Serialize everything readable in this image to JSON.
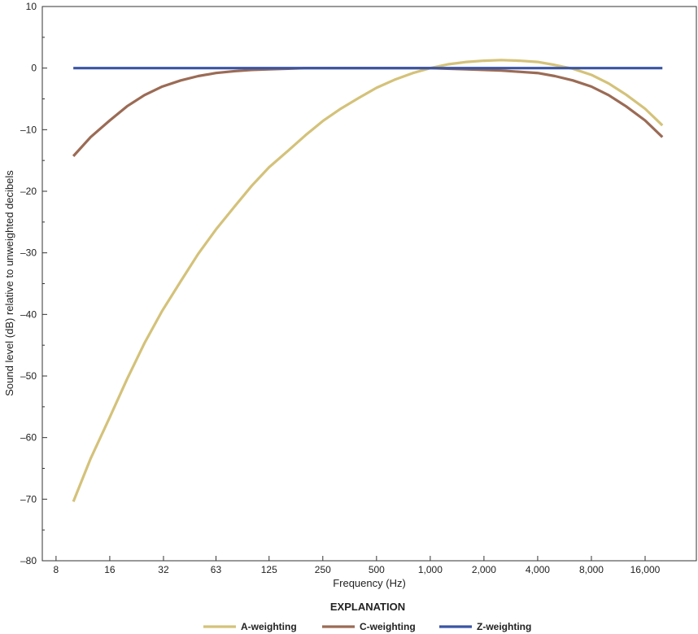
{
  "chart_data": {
    "type": "line",
    "xscale": "log2",
    "x_ticks": [
      8,
      16,
      32,
      63,
      125,
      250,
      500,
      1000,
      2000,
      4000,
      8000,
      16000
    ],
    "x_tick_labels": [
      "8",
      "16",
      "32",
      "63",
      "125",
      "250",
      "500",
      "1,000",
      "2,000",
      "4,000",
      "8,000",
      "16,000"
    ],
    "xlim": [
      6.7,
      31000
    ],
    "ylim": [
      -80,
      10
    ],
    "y_ticks": [
      10,
      0,
      -10,
      -20,
      -30,
      -40,
      -50,
      -60,
      -70,
      -80
    ],
    "y_tick_labels": [
      "10",
      "0",
      "–10",
      "–20",
      "–30",
      "–40",
      "–50",
      "–60",
      "–70",
      "–80"
    ],
    "xlabel": "Frequency (Hz)",
    "ylabel": "Sound level (dB) relative to unweighted decibels",
    "legend_title": "EXPLANATION",
    "legend_position": "bottom",
    "grid": false,
    "x": [
      10,
      12.5,
      16,
      20,
      25,
      31.5,
      40,
      50,
      63,
      80,
      100,
      125,
      160,
      200,
      250,
      315,
      400,
      500,
      630,
      800,
      1000,
      1250,
      1600,
      2000,
      2500,
      3150,
      4000,
      5000,
      6300,
      8000,
      10000,
      12500,
      16000,
      20000
    ],
    "series": [
      {
        "name": "A-weighting",
        "color": "#d4c27a",
        "values": [
          -70.4,
          -63.4,
          -56.7,
          -50.5,
          -44.7,
          -39.4,
          -34.6,
          -30.2,
          -26.2,
          -22.5,
          -19.1,
          -16.1,
          -13.4,
          -10.9,
          -8.6,
          -6.6,
          -4.8,
          -3.2,
          -1.9,
          -0.8,
          0.0,
          0.6,
          1.0,
          1.2,
          1.3,
          1.2,
          1.0,
          0.5,
          -0.1,
          -1.1,
          -2.5,
          -4.3,
          -6.6,
          -9.3
        ]
      },
      {
        "name": "C-weighting",
        "color": "#9b6b55",
        "values": [
          -14.3,
          -11.2,
          -8.5,
          -6.2,
          -4.4,
          -3.0,
          -2.0,
          -1.3,
          -0.8,
          -0.5,
          -0.3,
          -0.2,
          -0.1,
          0.0,
          0.0,
          0.0,
          0.0,
          0.0,
          0.0,
          0.0,
          0.0,
          -0.1,
          -0.2,
          -0.3,
          -0.4,
          -0.6,
          -0.8,
          -1.3,
          -2.0,
          -3.0,
          -4.4,
          -6.2,
          -8.5,
          -11.2
        ]
      },
      {
        "name": "Z-weighting",
        "color": "#3a55a4",
        "values": [
          0,
          0,
          0,
          0,
          0,
          0,
          0,
          0,
          0,
          0,
          0,
          0,
          0,
          0,
          0,
          0,
          0,
          0,
          0,
          0,
          0,
          0,
          0,
          0,
          0,
          0,
          0,
          0,
          0,
          0,
          0,
          0,
          0,
          0
        ]
      }
    ]
  }
}
